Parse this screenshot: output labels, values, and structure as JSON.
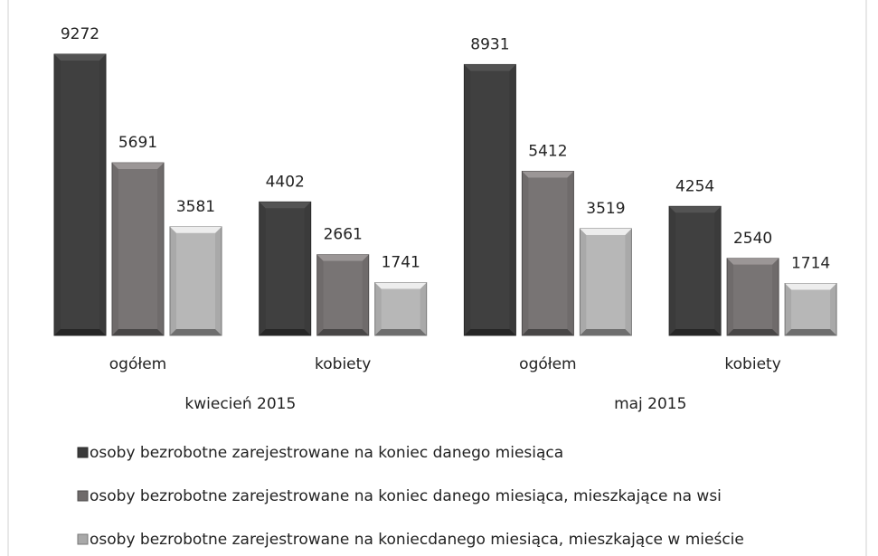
{
  "chart_data": {
    "type": "bar",
    "categories": [
      "ogółem",
      "kobiety",
      "ogółem",
      "kobiety"
    ],
    "groups": [
      {
        "label": "kwiecień 2015",
        "categories": [
          0,
          1
        ]
      },
      {
        "label": "maj 2015",
        "categories": [
          2,
          3
        ]
      }
    ],
    "series": [
      {
        "name": "osoby bezrobotne zarejestrowane na koniec danego miesiąca",
        "color": "#3b3b3b",
        "values": [
          9272,
          4402,
          8931,
          4254
        ]
      },
      {
        "name": "osoby bezrobotne zarejestrowane na koniec danego miesiąca, mieszkające na wsi",
        "color": "#6f6b6b",
        "values": [
          5691,
          2661,
          5412,
          2540
        ]
      },
      {
        "name": "osoby bezrobotne zarejestrowane na koniecdanego miesiąca, mieszkające w mieście",
        "color": "#a9a9a9",
        "values": [
          3581,
          1741,
          3519,
          1714
        ]
      }
    ],
    "legend": "bottom"
  }
}
